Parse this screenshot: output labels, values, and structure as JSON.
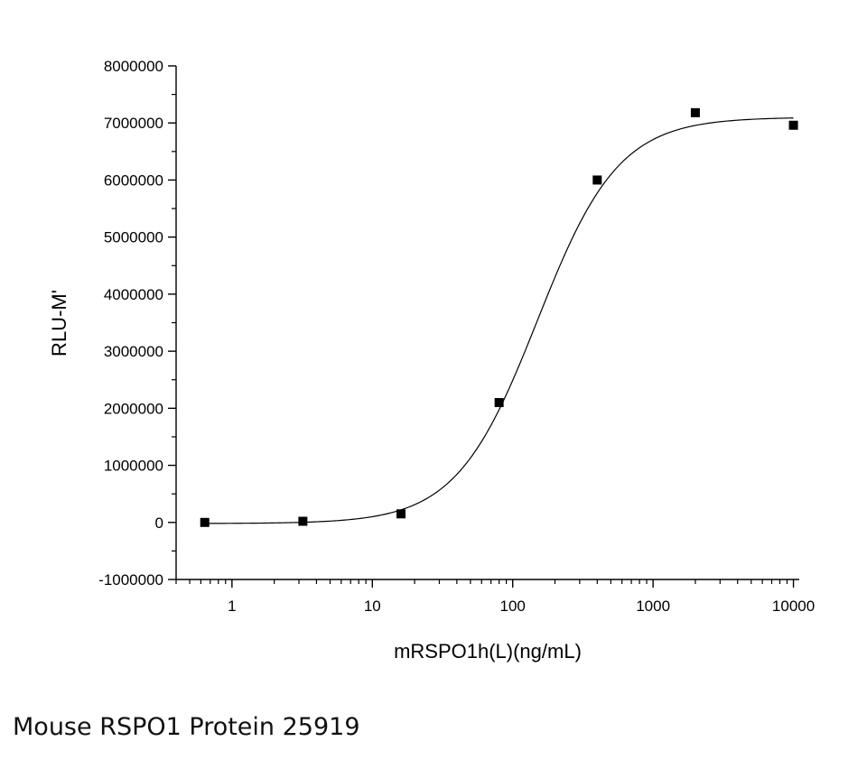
{
  "chart_data": {
    "type": "scatter",
    "title": "",
    "xlabel": "mRSPO1h(L)(ng/mL)",
    "ylabel": "RLU-M'",
    "xscale": "log",
    "xlim": [
      0.4,
      11000
    ],
    "ylim": [
      -1000000,
      8000000
    ],
    "x_ticks": [
      1,
      10,
      100,
      1000,
      10000
    ],
    "x_tick_labels": [
      "1",
      "10",
      "100",
      "1000",
      "10000"
    ],
    "y_ticks": [
      -1000000,
      0,
      1000000,
      2000000,
      3000000,
      4000000,
      5000000,
      6000000,
      7000000,
      8000000
    ],
    "y_tick_labels": [
      "-1000000",
      "0",
      "1000000",
      "2000000",
      "3000000",
      "4000000",
      "5000000",
      "6000000",
      "7000000",
      "8000000"
    ],
    "grid": false,
    "legend": "none",
    "series": [
      {
        "marker": "square",
        "x": [
          0.64,
          3.2,
          16,
          80,
          400,
          2000,
          10000
        ],
        "y": [
          0,
          20000,
          150000,
          2100000,
          6000000,
          7180000,
          6960000
        ]
      }
    ],
    "fit": {
      "type": "4-parameter logistic",
      "bottom": -20000,
      "top": 7100000,
      "ec50": 150,
      "hill": 1.5,
      "x_range": [
        0.64,
        10000
      ]
    },
    "colors": {
      "marker": "#000000",
      "line": "#000000",
      "axis": "#000000"
    }
  },
  "caption": "Mouse RSPO1 Protein 25919"
}
